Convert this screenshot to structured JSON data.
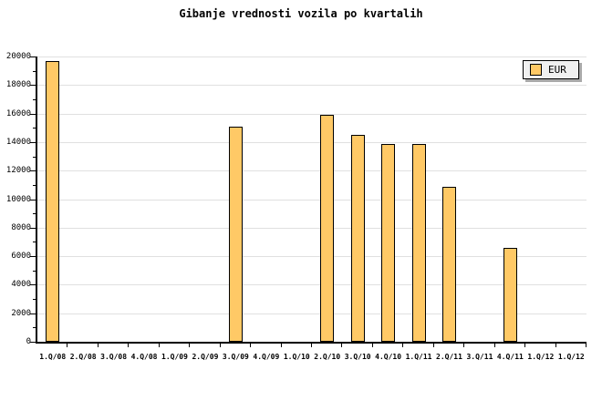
{
  "title": "Gibanje vrednosti vozila po kvartalih",
  "legend": {
    "label": "EUR"
  },
  "colors": {
    "bar_fill": "#FFC966",
    "bar_border": "#000000",
    "grid": "#E0E0E0",
    "axis": "#000000",
    "text": "#000000",
    "legend_bg": "#F0F0F0",
    "legend_shadow": "#A9A9A9"
  },
  "chart_data": {
    "type": "bar",
    "title": "Gibanje vrednosti vozila po kvartalih",
    "categories": [
      "1.Q/08",
      "2.Q/08",
      "3.Q/08",
      "4.Q/08",
      "1.Q/09",
      "2.Q/09",
      "3.Q/09",
      "4.Q/09",
      "1.Q/10",
      "2.Q/10",
      "3.Q/10",
      "4.Q/10",
      "1.Q/11",
      "2.Q/11",
      "3.Q/11",
      "4.Q/11",
      "1.Q/12",
      "1.Q/12"
    ],
    "series": [
      {
        "name": "EUR",
        "values": [
          19700,
          null,
          null,
          null,
          null,
          null,
          15100,
          null,
          null,
          15900,
          14500,
          13850,
          13850,
          10850,
          null,
          6550,
          null,
          null
        ]
      }
    ],
    "ylim": [
      0,
      20000
    ],
    "ytick_step": 2000,
    "ytick_minor_step": 1000,
    "ytick_labels": [
      "0",
      "2000",
      "4000",
      "6000",
      "8000",
      "10000",
      "12000",
      "14000",
      "16000",
      "18000",
      "20000"
    ],
    "grid": true,
    "legend_position": "top-right"
  }
}
